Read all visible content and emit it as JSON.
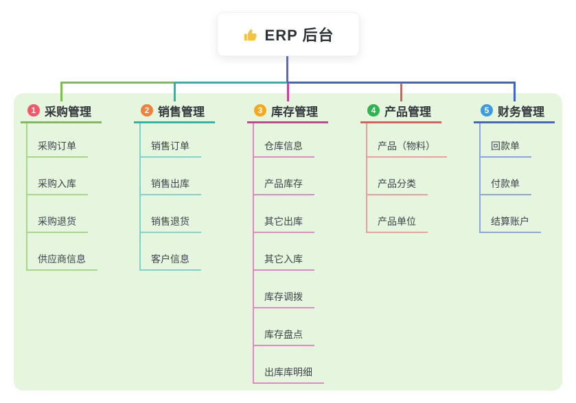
{
  "root": {
    "label": "ERP 后台",
    "icon": "thumbs-up-icon",
    "icon_color": "#f5c33b"
  },
  "trunk_color": "#5566d8",
  "panel_color": "#e5f5de",
  "branches": [
    {
      "index": "1",
      "label": "采购管理",
      "badge_color": "#f1586b",
      "line_color": "#7cbe4f",
      "child_line_color": "#a6d687",
      "children": [
        "采购订单",
        "采购入库",
        "采购退货",
        "供应商信息"
      ]
    },
    {
      "index": "2",
      "label": "销售管理",
      "badge_color": "#f0803d",
      "line_color": "#1bbcb1",
      "child_line_color": "#7fd3ca",
      "children": [
        "销售订单",
        "销售出库",
        "销售退货",
        "客户信息"
      ]
    },
    {
      "index": "3",
      "label": "库存管理",
      "badge_color": "#f7a91e",
      "line_color": "#d23a9d",
      "child_line_color": "#e287c3",
      "children": [
        "仓库信息",
        "产品库存",
        "其它出库",
        "其它入库",
        "库存调拨",
        "库存盘点",
        "出库库明细"
      ]
    },
    {
      "index": "4",
      "label": "产品管理",
      "badge_color": "#2db551",
      "line_color": "#f05456",
      "child_line_color": "#f49c9d",
      "children": [
        "产品（物料）",
        "产品分类",
        "产品单位"
      ]
    },
    {
      "index": "5",
      "label": "财务管理",
      "badge_color": "#3d9cdf",
      "line_color": "#3e63ce",
      "child_line_color": "#8aa5e6",
      "children": [
        "回款单",
        "付款单",
        "结算账户"
      ]
    }
  ]
}
